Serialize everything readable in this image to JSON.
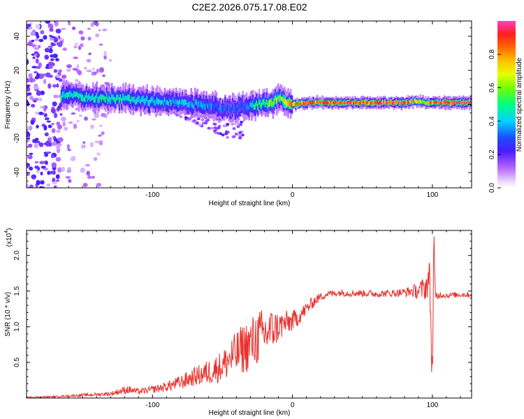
{
  "title": "C2E2.2026.075.17.08.E02",
  "colors": {
    "snr_line": "#e8302c",
    "frame": "#000000",
    "background": "#ffffff"
  },
  "chart_data": [
    {
      "type": "heatmap",
      "title": "C2E2.2026.075.17.08.E02",
      "xlabel": "Height of straight line (km)",
      "ylabel": "Frequency (Hz)",
      "xlim": [
        -190,
        128
      ],
      "ylim": [
        -49,
        49
      ],
      "xticks": [
        -100,
        0,
        100
      ],
      "xtick_labels": [
        "-100",
        "0",
        "100"
      ],
      "yticks": [
        -40,
        -20,
        0,
        20,
        40
      ],
      "ytick_labels": [
        "-40",
        "-20",
        "0",
        "20",
        "40"
      ],
      "colorbar": {
        "label": "Normalized spectral amplitude",
        "range": [
          0,
          1
        ],
        "ticks": [
          0.0,
          0.2,
          0.4,
          0.6,
          0.8
        ],
        "tick_labels": [
          "0.0",
          "0.2",
          "0.4",
          "0.6",
          "0.8"
        ],
        "colormap": [
          "#ffffff",
          "#d8c4ff",
          "#9b2bff",
          "#2a10ff",
          "#00d9ff",
          "#00ff66",
          "#aaff00",
          "#ffe000",
          "#ff7a00",
          "#ff1f1f",
          "#ff3fc0"
        ]
      },
      "ridge": {
        "x": [
          -160,
          -140,
          -120,
          -100,
          -80,
          -60,
          -45,
          -35,
          -25,
          -15,
          -8,
          -5,
          0,
          10,
          40,
          80,
          90,
          95,
          100,
          128
        ],
        "y": [
          5,
          4,
          3,
          2,
          1,
          -1,
          -3,
          -1,
          0,
          1,
          4,
          1,
          0,
          1,
          1,
          1,
          2,
          1,
          1,
          1
        ],
        "peak_amplitude": [
          0.45,
          0.45,
          0.45,
          0.4,
          0.4,
          0.35,
          0.3,
          0.3,
          0.5,
          0.6,
          0.55,
          0.7,
          0.8,
          0.8,
          0.85,
          0.9,
          0.7,
          0.6,
          0.85,
          0.9
        ]
      },
      "noise_region": {
        "x_range": [
          -190,
          -140
        ],
        "note": "broadband scatter over full frequency range"
      },
      "spread_region": {
        "x_range": [
          -60,
          -35
        ],
        "y_range": [
          -20,
          0
        ]
      }
    },
    {
      "type": "line",
      "xlabel": "Height of straight line (km)",
      "ylabel": "SNR (10 * v/v)",
      "multiplier_label": "(x10",
      "multiplier_exponent": "4",
      "xlim": [
        -190,
        128
      ],
      "ylim": [
        0,
        2.35
      ],
      "xticks": [
        -100,
        0,
        100
      ],
      "xtick_labels": [
        "-100",
        "0",
        "100"
      ],
      "yticks": [
        0.5,
        1.0,
        1.5,
        2.0
      ],
      "ytick_labels": [
        "0.5",
        "1.0",
        "1.5",
        "2.0"
      ],
      "series": [
        {
          "name": "SNR",
          "color": "#e8302c",
          "x": [
            -190,
            -170,
            -150,
            -130,
            -118,
            -110,
            -100,
            -90,
            -80,
            -70,
            -60,
            -50,
            -45,
            -40,
            -35,
            -30,
            -25,
            -20,
            -15,
            -10,
            -5,
            0,
            5,
            10,
            15,
            20,
            25,
            30,
            35,
            40,
            50,
            60,
            70,
            80,
            85,
            90,
            95,
            98,
            100,
            101,
            102,
            105,
            110,
            120,
            128
          ],
          "y": [
            0.01,
            0.02,
            0.04,
            0.06,
            0.12,
            0.09,
            0.12,
            0.16,
            0.22,
            0.3,
            0.36,
            0.45,
            0.55,
            0.62,
            0.7,
            0.75,
            0.85,
            0.9,
            0.95,
            1.0,
            1.05,
            1.08,
            1.15,
            1.25,
            1.35,
            1.42,
            1.46,
            1.47,
            1.48,
            1.47,
            1.47,
            1.46,
            1.47,
            1.48,
            1.5,
            1.5,
            1.55,
            1.7,
            0.25,
            2.3,
            1.4,
            1.45,
            1.44,
            1.45,
            1.45
          ],
          "jitter": [
            0.01,
            0.01,
            0.02,
            0.03,
            0.06,
            0.04,
            0.05,
            0.07,
            0.1,
            0.13,
            0.18,
            0.22,
            0.28,
            0.32,
            0.36,
            0.38,
            0.4,
            0.35,
            0.3,
            0.22,
            0.18,
            0.15,
            0.12,
            0.1,
            0.08,
            0.06,
            0.05,
            0.05,
            0.05,
            0.05,
            0.05,
            0.05,
            0.05,
            0.06,
            0.08,
            0.12,
            0.18,
            0.25,
            0.3,
            0.3,
            0.1,
            0.05,
            0.04,
            0.04,
            0.04
          ]
        }
      ]
    }
  ]
}
